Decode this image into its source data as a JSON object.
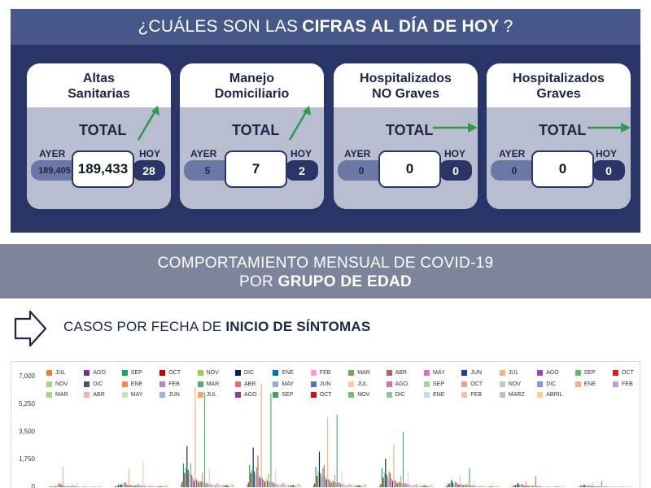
{
  "header": {
    "prefix": "¿CUÁLES SON LAS",
    "bold": "CIFRAS AL DÍA DE HOY",
    "suffix": "?"
  },
  "cards": [
    {
      "title_line1": "Altas",
      "title_line2": "Sanitarias",
      "total_label": "TOTAL",
      "ayer_label": "AYER",
      "hoy_label": "HOY",
      "ayer_value": "189,405",
      "total_value": "189,433",
      "hoy_value": "28",
      "trend": "up"
    },
    {
      "title_line1": "Manejo",
      "title_line2": "Domiciliario",
      "total_label": "TOTAL",
      "ayer_label": "AYER",
      "hoy_label": "HOY",
      "ayer_value": "5",
      "total_value": "7",
      "hoy_value": "2",
      "trend": "up"
    },
    {
      "title_line1": "Hospitalizados",
      "title_line2": "NO Graves",
      "total_label": "TOTAL",
      "ayer_label": "AYER",
      "hoy_label": "HOY",
      "ayer_value": "0",
      "total_value": "0",
      "hoy_value": "0",
      "trend": "flat"
    },
    {
      "title_line1": "Hospitalizados",
      "title_line2": "Graves",
      "total_label": "TOTAL",
      "ayer_label": "AYER",
      "hoy_label": "HOY",
      "ayer_value": "0",
      "total_value": "0",
      "hoy_value": "0",
      "trend": "flat"
    }
  ],
  "band": {
    "line1": "COMPORTAMIENTO MENSUAL DE COVID-19",
    "line2_prefix": "POR",
    "line2_bold": "GRUPO DE EDAD"
  },
  "section": {
    "prefix": "CASOS POR FECHA DE",
    "bold": "INICIO DE SÍNTOMAS"
  },
  "colors": {
    "navy": "#293567",
    "header_blue": "#46578a",
    "card_body": "#b9bdd0",
    "pill": "#6b78a6",
    "arrow_green": "#2e9a4c",
    "band_gray": "#7d859d"
  },
  "chart_data": {
    "type": "bar",
    "ylim": [
      0,
      7000
    ],
    "y_ticks": [
      "7,000",
      "5,250",
      "3,500",
      "1,750",
      "0"
    ],
    "legend": [
      {
        "label": "JUL",
        "color": "#ed7d31"
      },
      {
        "label": "AGO",
        "color": "#7030a0"
      },
      {
        "label": "SEP",
        "color": "#00b050"
      },
      {
        "label": "OCT",
        "color": "#c00000"
      },
      {
        "label": "NOV",
        "color": "#92d050"
      },
      {
        "label": "DIC",
        "color": "#002060"
      },
      {
        "label": "ENE",
        "color": "#0070c0"
      },
      {
        "label": "FEB",
        "color": "#ff99cc"
      },
      {
        "label": "MAR",
        "color": "#70ad47"
      },
      {
        "label": "ABR",
        "color": "#c55a5a"
      },
      {
        "label": "MAY",
        "color": "#e56fbf"
      },
      {
        "label": "JUN",
        "color": "#1f3c9c"
      },
      {
        "label": "JUL",
        "color": "#f4b183"
      },
      {
        "label": "AGO",
        "color": "#9e48b8"
      },
      {
        "label": "SEP",
        "color": "#5fbf6a"
      },
      {
        "label": "OCT",
        "color": "#e02020"
      },
      {
        "label": "NOV",
        "color": "#a9d18e"
      },
      {
        "label": "DIC",
        "color": "#44546a"
      },
      {
        "label": "ENE",
        "color": "#f08c4a"
      },
      {
        "label": "FEB",
        "color": "#b084cc"
      },
      {
        "label": "MAR",
        "color": "#4caf6e"
      },
      {
        "label": "ABR",
        "color": "#e07070"
      },
      {
        "label": "MAY",
        "color": "#8faadc"
      },
      {
        "label": "JUN",
        "color": "#5a6fc0"
      },
      {
        "label": "JUL",
        "color": "#f8cbad"
      },
      {
        "label": "AGO",
        "color": "#d46fb4"
      },
      {
        "label": "SEP",
        "color": "#9fd49f"
      },
      {
        "label": "OCT",
        "color": "#f29a9a"
      },
      {
        "label": "NOV",
        "color": "#c5c5c5"
      },
      {
        "label": "DIC",
        "color": "#7f9ccc"
      },
      {
        "label": "ENE",
        "color": "#f5b083"
      },
      {
        "label": "FEB",
        "color": "#c999d9"
      },
      {
        "label": "MAR",
        "color": "#a6d785"
      },
      {
        "label": "ABR",
        "color": "#f0b0b0"
      },
      {
        "label": "MAY",
        "color": "#d9d9b3"
      },
      {
        "label": "JUN",
        "color": "#9bb4de"
      },
      {
        "label": "JUL",
        "color": "#f4a460"
      },
      {
        "label": "AGO",
        "color": "#8e3e9e"
      },
      {
        "label": "SEP",
        "color": "#3aa35a"
      },
      {
        "label": "OCT",
        "color": "#cc1111"
      },
      {
        "label": "NOV",
        "color": "#70c07a"
      },
      {
        "label": "DIC",
        "color": "#8fc3a0"
      },
      {
        "label": "ENE",
        "color": "#c9d3ea"
      },
      {
        "label": "FEB",
        "color": "#e6c7a8"
      },
      {
        "label": "MARZ",
        "color": "#bfbfbf"
      },
      {
        "label": "ABRIL",
        "color": "#f7caa0"
      }
    ],
    "groups": [
      {
        "values": [
          40,
          30,
          60,
          20,
          80,
          30,
          70,
          110,
          180,
          250,
          220,
          130,
          1320,
          90,
          50,
          40,
          90,
          50,
          60,
          70,
          140,
          60,
          80,
          60,
          300,
          50,
          40,
          30,
          60,
          30,
          70,
          80,
          40,
          30,
          50,
          30,
          40,
          20,
          40,
          20,
          30,
          20,
          30,
          80,
          50,
          40
        ]
      },
      {
        "values": [
          50,
          60,
          90,
          140,
          230,
          160,
          170,
          130,
          310,
          280,
          180,
          120,
          1150,
          160,
          110,
          90,
          110,
          120,
          150,
          100,
          210,
          80,
          130,
          90,
          1640,
          120,
          80,
          60,
          90,
          60,
          110,
          120,
          80,
          70,
          90,
          60,
          70,
          40,
          80,
          60,
          70,
          50,
          70,
          150,
          110,
          90
        ]
      },
      {
        "values": [
          200,
          350,
          1500,
          900,
          1200,
          2600,
          1100,
          880,
          1500,
          800,
          600,
          400,
          6300,
          500,
          400,
          300,
          450,
          350,
          900,
          300,
          6000,
          250,
          300,
          200,
          1150,
          200,
          160,
          130,
          170,
          120,
          220,
          250,
          160,
          130,
          160,
          120,
          140,
          100,
          150,
          120,
          130,
          90,
          120,
          240,
          180,
          150
        ]
      },
      {
        "values": [
          180,
          300,
          1400,
          900,
          1100,
          2500,
          1000,
          800,
          1250,
          2000,
          700,
          600,
          6500,
          550,
          450,
          350,
          500,
          400,
          850,
          350,
          5950,
          300,
          350,
          250,
          1100,
          220,
          170,
          140,
          180,
          130,
          240,
          260,
          170,
          140,
          170,
          130,
          150,
          110,
          160,
          130,
          140,
          100,
          130,
          250,
          190,
          160
        ]
      },
      {
        "values": [
          160,
          250,
          1300,
          700,
          1000,
          2250,
          900,
          700,
          1200,
          1400,
          650,
          500,
          4400,
          500,
          400,
          300,
          450,
          350,
          800,
          300,
          4600,
          280,
          320,
          220,
          1000,
          200,
          150,
          120,
          160,
          110,
          200,
          230,
          150,
          120,
          150,
          110,
          130,
          100,
          140,
          110,
          120,
          90,
          110,
          220,
          170,
          140
        ]
      },
      {
        "values": [
          120,
          200,
          1200,
          600,
          900,
          1800,
          800,
          600,
          1000,
          900,
          550,
          400,
          2700,
          450,
          350,
          250,
          400,
          300,
          700,
          250,
          3500,
          230,
          280,
          200,
          900,
          180,
          140,
          110,
          150,
          100,
          180,
          210,
          140,
          110,
          140,
          100,
          120,
          90,
          130,
          100,
          110,
          80,
          100,
          200,
          150,
          130
        ]
      },
      {
        "values": [
          60,
          90,
          250,
          200,
          300,
          450,
          280,
          220,
          350,
          300,
          220,
          160,
          700,
          180,
          150,
          120,
          170,
          140,
          220,
          130,
          1200,
          110,
          140,
          100,
          380,
          90,
          70,
          60,
          80,
          50,
          90,
          110,
          70,
          60,
          70,
          50,
          60,
          40,
          70,
          50,
          60,
          40,
          50,
          100,
          80,
          60
        ]
      },
      {
        "values": [
          40,
          60,
          140,
          120,
          180,
          260,
          170,
          140,
          200,
          180,
          130,
          100,
          400,
          110,
          90,
          70,
          100,
          80,
          130,
          80,
          700,
          70,
          90,
          60,
          220,
          60,
          50,
          40,
          50,
          30,
          60,
          70,
          40,
          40,
          50,
          30,
          40,
          30,
          40,
          30,
          40,
          30,
          30,
          70,
          50,
          40
        ]
      },
      {
        "values": [
          30,
          40,
          90,
          80,
          110,
          160,
          100,
          90,
          130,
          110,
          80,
          60,
          250,
          70,
          60,
          50,
          60,
          50,
          80,
          50,
          400,
          40,
          60,
          40,
          140,
          40,
          30,
          30,
          40,
          20,
          40,
          50,
          30,
          30,
          30,
          20,
          30,
          20,
          30,
          20,
          30,
          20,
          20,
          50,
          40,
          30
        ]
      }
    ]
  }
}
